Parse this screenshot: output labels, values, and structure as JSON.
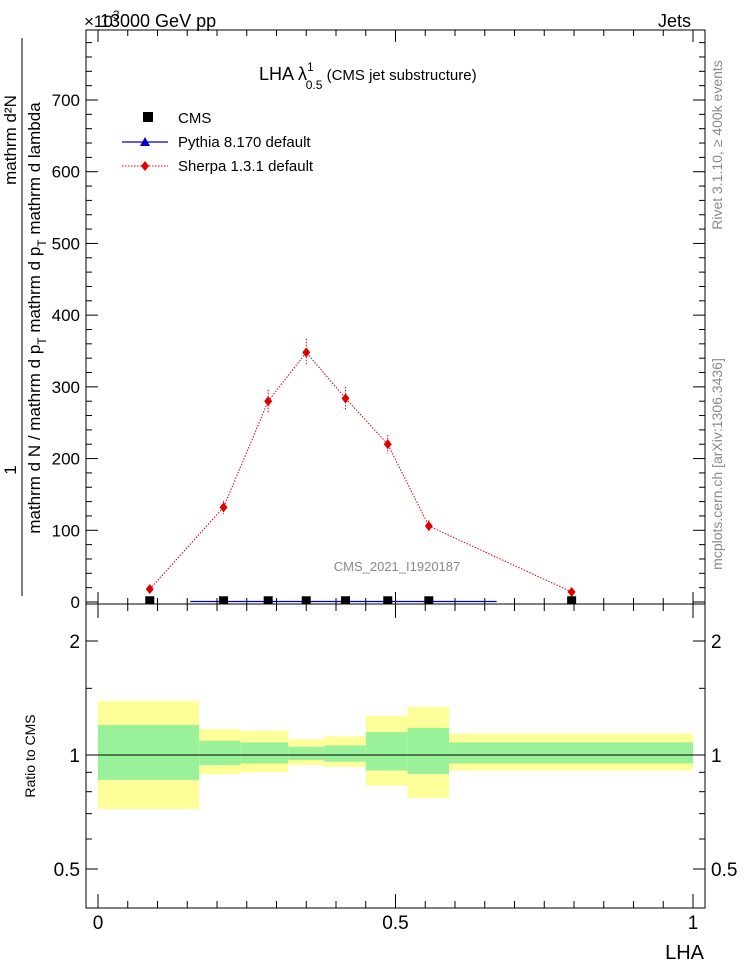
{
  "header": {
    "left": "13000 GeV pp",
    "right": "Jets",
    "exponent": "×10",
    "exponent_power": "3"
  },
  "side_labels": {
    "rivet": "Rivet 3.1.10, ≥ 400k events",
    "mcplots": "mcplots.cern.ch [arXiv:1306.3436]"
  },
  "plot_title": {
    "main": "LHA λ",
    "sup": "1",
    "sub": "0.5",
    "suffix": " (CMS jet substructure)"
  },
  "watermark": "CMS_2021_I1920187",
  "y_label_main": {
    "numerator": "1",
    "denominator": "mathrm d N / mathrm d p",
    "sub": "T",
    "suffix": " mathrm d p",
    "sub2": "T",
    "tail": " mathrm d lambda",
    "numerator2": "mathrm d²N"
  },
  "ratio_ylabel": "Ratio to CMS",
  "xlabel": "LHA",
  "colors": {
    "cms": "#000000",
    "pythia": "#0000cc",
    "sherpa": "#dd0000",
    "band_inner": "#99f299",
    "band_outer": "#ffff99"
  },
  "chart_data": [
    {
      "type": "line",
      "title": "LHA λ^1_0.5 (CMS jet substructure)",
      "xlabel": "LHA",
      "ylabel": "1 / mathrm d N / mathrm d p_T mathrm d p_T mathrm d lambda · mathrm d²N",
      "xlim": [
        -0.02,
        1.02
      ],
      "ylim": [
        0,
        790
      ],
      "y_multiplier": "×10^3",
      "yticks": [
        0,
        100,
        200,
        300,
        400,
        500,
        600,
        700
      ],
      "legend": [
        "CMS",
        "Pythia 8.170 default",
        "Sherpa 1.3.1 default"
      ],
      "legend_position": "top-left",
      "series": [
        {
          "name": "CMS",
          "marker": "square",
          "x": [
            0.087,
            0.211,
            0.286,
            0.35,
            0.416,
            0.487,
            0.556,
            0.796
          ],
          "y": [
            1,
            1,
            1,
            1,
            1,
            1,
            1,
            1
          ]
        },
        {
          "name": "Pythia 8.170 default",
          "marker": "triangle",
          "x": [
            0.087,
            0.211,
            0.286,
            0.35,
            0.416,
            0.487,
            0.556,
            0.796
          ],
          "y": [
            0,
            0,
            0,
            0,
            0,
            0,
            0,
            0
          ]
        },
        {
          "name": "Sherpa 1.3.1 default",
          "marker": "diamond",
          "x": [
            0.087,
            0.211,
            0.286,
            0.35,
            0.416,
            0.487,
            0.556,
            0.796
          ],
          "y": [
            18,
            132,
            280,
            348,
            284,
            220,
            106,
            14
          ],
          "err": [
            3,
            9,
            16,
            19,
            16,
            13,
            8,
            3
          ]
        }
      ]
    },
    {
      "type": "area",
      "title": "",
      "ylabel": "Ratio to CMS",
      "xlabel": "LHA",
      "xlim": [
        -0.02,
        1.02
      ],
      "ylim": [
        0.35,
        2.3
      ],
      "ylog": true,
      "yticks": [
        0.5,
        1,
        2
      ],
      "xticks": [
        0,
        0.5,
        1
      ],
      "bins": [
        0,
        0.17,
        0.24,
        0.32,
        0.38,
        0.45,
        0.52,
        0.59,
        1.0
      ],
      "inner_band": {
        "low": [
          0.86,
          0.94,
          0.95,
          0.97,
          0.96,
          0.91,
          0.89,
          0.95
        ],
        "high": [
          1.2,
          1.09,
          1.08,
          1.05,
          1.06,
          1.15,
          1.18,
          1.08
        ]
      },
      "outer_band": {
        "low": [
          0.72,
          0.89,
          0.9,
          0.94,
          0.93,
          0.83,
          0.77,
          0.91
        ],
        "high": [
          1.39,
          1.17,
          1.16,
          1.1,
          1.12,
          1.27,
          1.34,
          1.14
        ]
      },
      "reference": 1
    }
  ]
}
